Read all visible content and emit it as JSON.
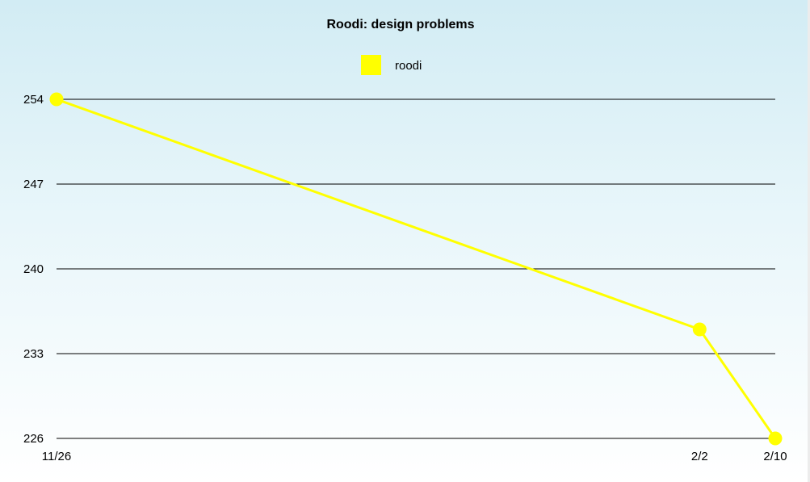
{
  "chart_data": {
    "type": "line",
    "title": "Roodi: design problems",
    "xlabel": "",
    "ylabel": "",
    "categories": [
      "11/26",
      "2/2",
      "2/10"
    ],
    "series": [
      {
        "name": "roodi",
        "values": [
          254,
          235,
          226
        ],
        "color": "#ffff00"
      }
    ],
    "ylim": [
      226,
      254
    ],
    "yticks": [
      226,
      233,
      240,
      247,
      254
    ],
    "grid": true,
    "legend": "top-center"
  }
}
